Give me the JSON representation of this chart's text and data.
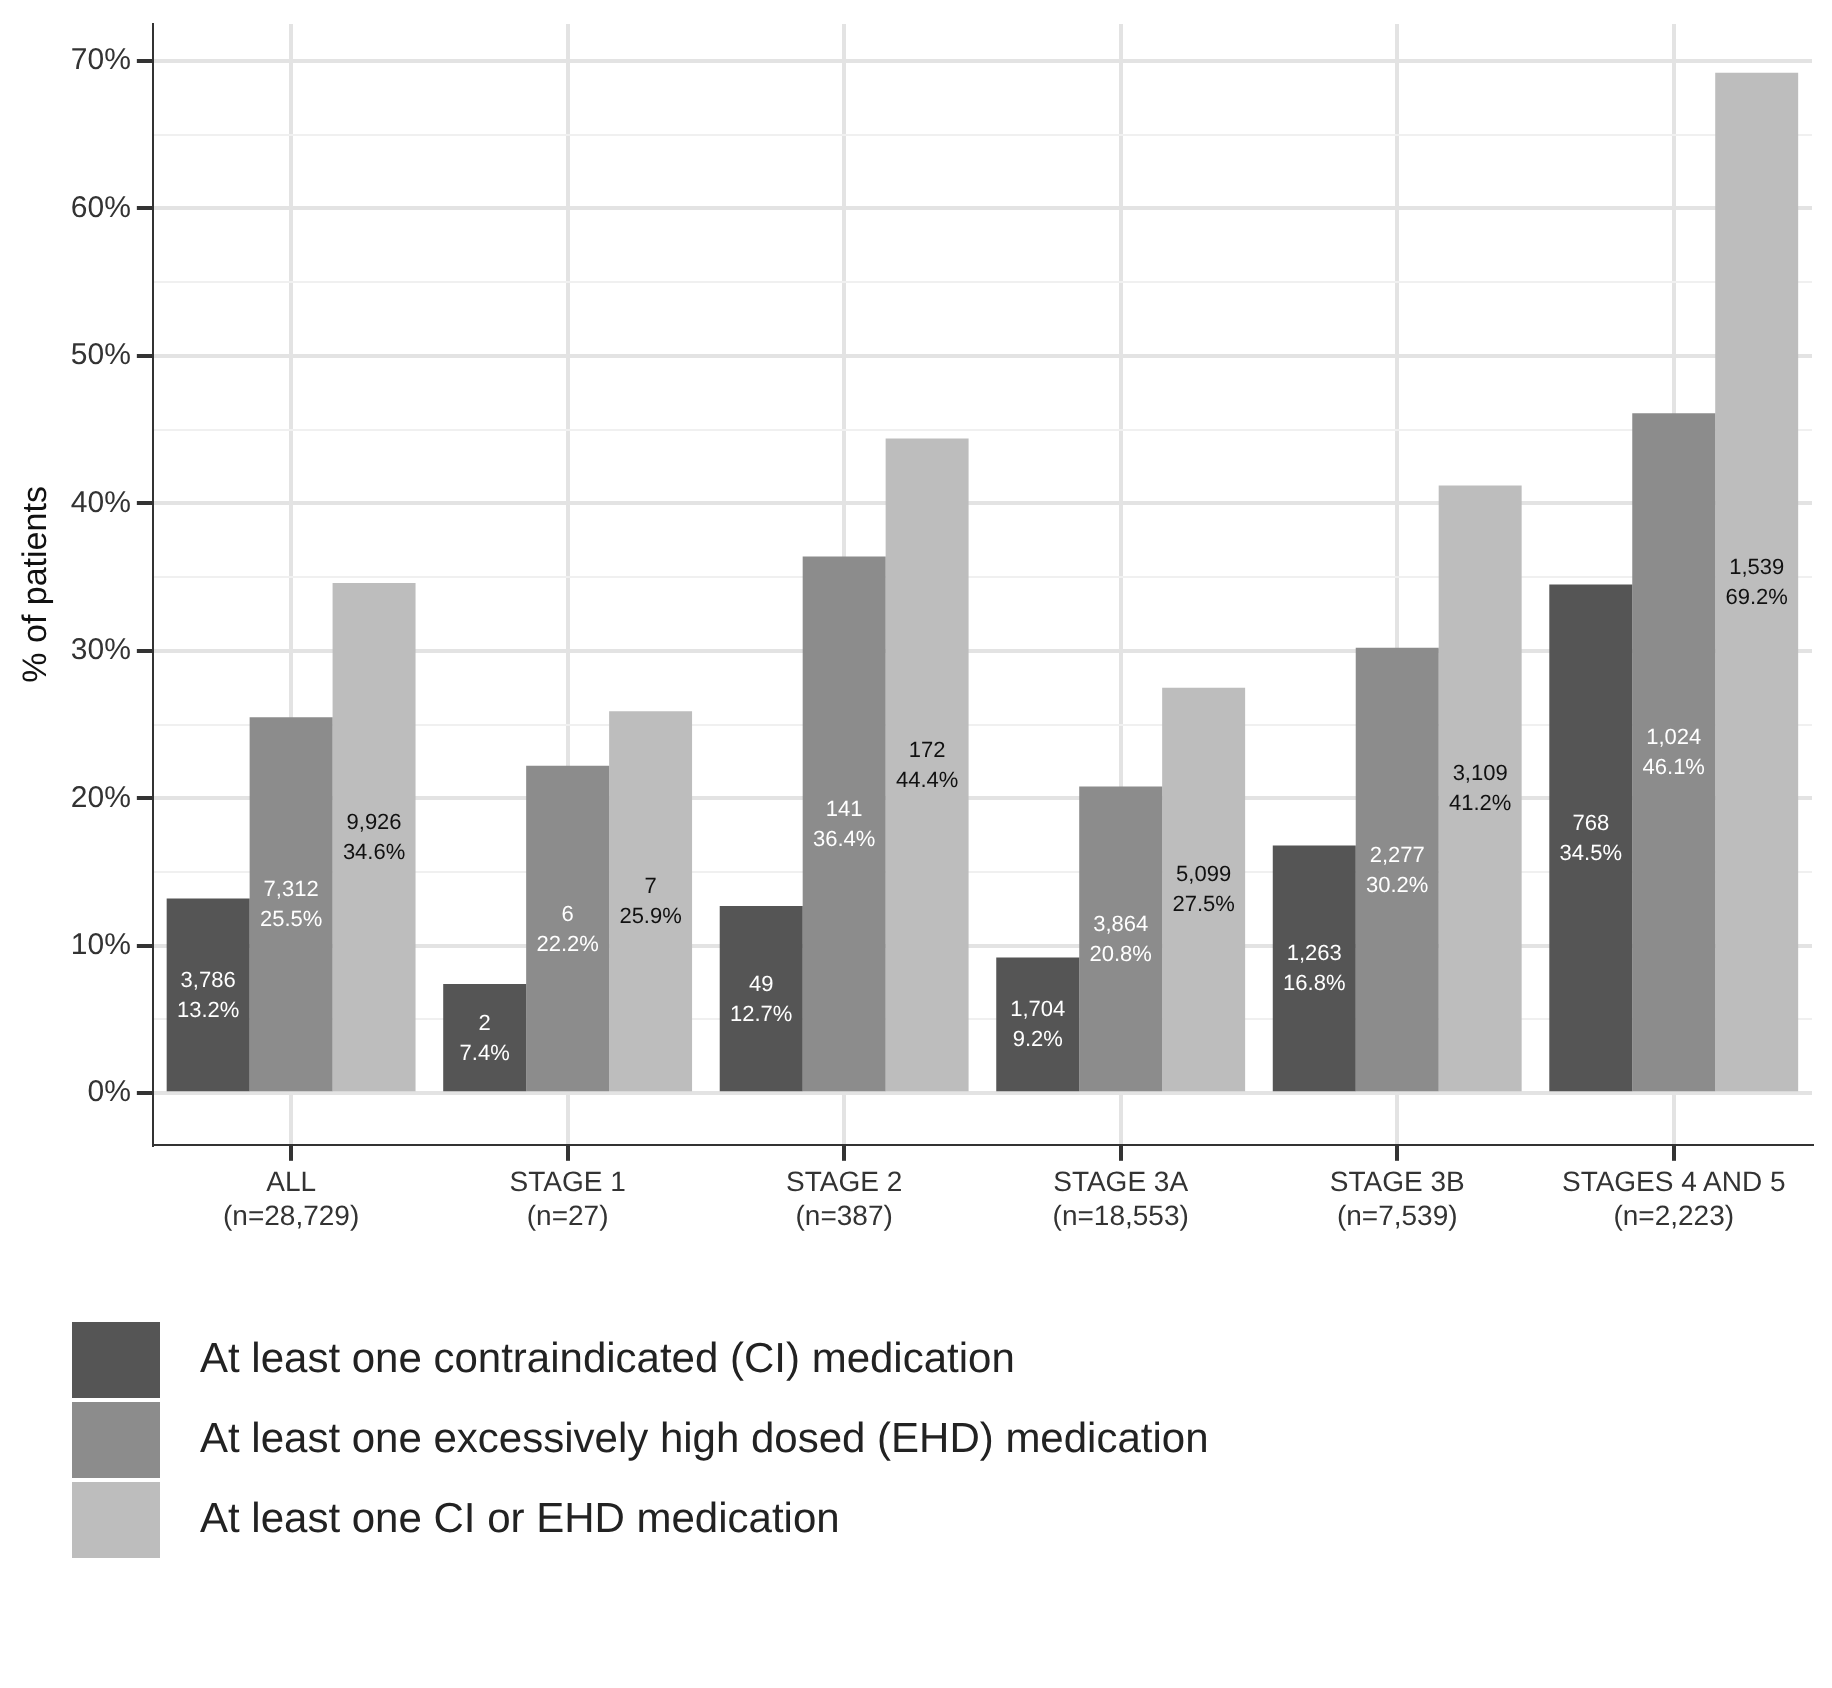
{
  "chart_data": {
    "type": "bar",
    "ylabel": "% of patients",
    "categories": [
      "ALL\n(n=28,729)",
      "STAGE 1\n(n=27)",
      "STAGE 2\n(n=387)",
      "STAGE 3A\n(n=18,553)",
      "STAGE 3B\n(n=7,539)",
      "STAGES 4 AND 5\n(n=2,223)"
    ],
    "series": [
      {
        "name": "At least one contraindicated (CI) medication",
        "color": "#555555",
        "values": [
          13.2,
          7.4,
          12.7,
          9.2,
          16.8,
          34.5
        ],
        "value_labels": [
          "3,786\n13.2%",
          "2\n7.4%",
          "49\n12.7%",
          "1,704\n9.2%",
          "1,263\n16.8%",
          "768\n34.5%"
        ]
      },
      {
        "name": "At least one excessively high dosed (EHD) medication",
        "color": "#8c8c8c",
        "values": [
          25.5,
          22.2,
          36.4,
          20.8,
          30.2,
          46.1
        ],
        "value_labels": [
          "7,312\n25.5%",
          "6\n22.2%",
          "141\n36.4%",
          "3,864\n20.8%",
          "2,277\n30.2%",
          "1,024\n46.1%"
        ]
      },
      {
        "name": "At least one CI or EHD medication",
        "color": "#bdbdbd",
        "values": [
          34.6,
          25.9,
          44.4,
          27.5,
          41.2,
          69.2
        ],
        "value_labels": [
          "9,926\n34.6%",
          "7\n25.9%",
          "172\n44.4%",
          "5,099\n27.5%",
          "3,109\n41.2%",
          "1,539\n69.2%"
        ]
      }
    ],
    "ylim": [
      -3.5,
      72.5
    ],
    "yticks": [
      {
        "value": 0,
        "label": "0%"
      },
      {
        "value": 5,
        "label": null
      },
      {
        "value": 10,
        "label": "10%"
      },
      {
        "value": 15,
        "label": null
      },
      {
        "value": 20,
        "label": "20%"
      },
      {
        "value": 25,
        "label": null
      },
      {
        "value": 30,
        "label": "30%"
      },
      {
        "value": 35,
        "label": null
      },
      {
        "value": 40,
        "label": "40%"
      },
      {
        "value": 45,
        "label": null
      },
      {
        "value": 50,
        "label": "50%"
      },
      {
        "value": 55,
        "label": null
      },
      {
        "value": 60,
        "label": "60%"
      },
      {
        "value": 65,
        "label": null
      },
      {
        "value": 70,
        "label": "70%"
      }
    ],
    "grid": true,
    "legend": "bottom"
  }
}
